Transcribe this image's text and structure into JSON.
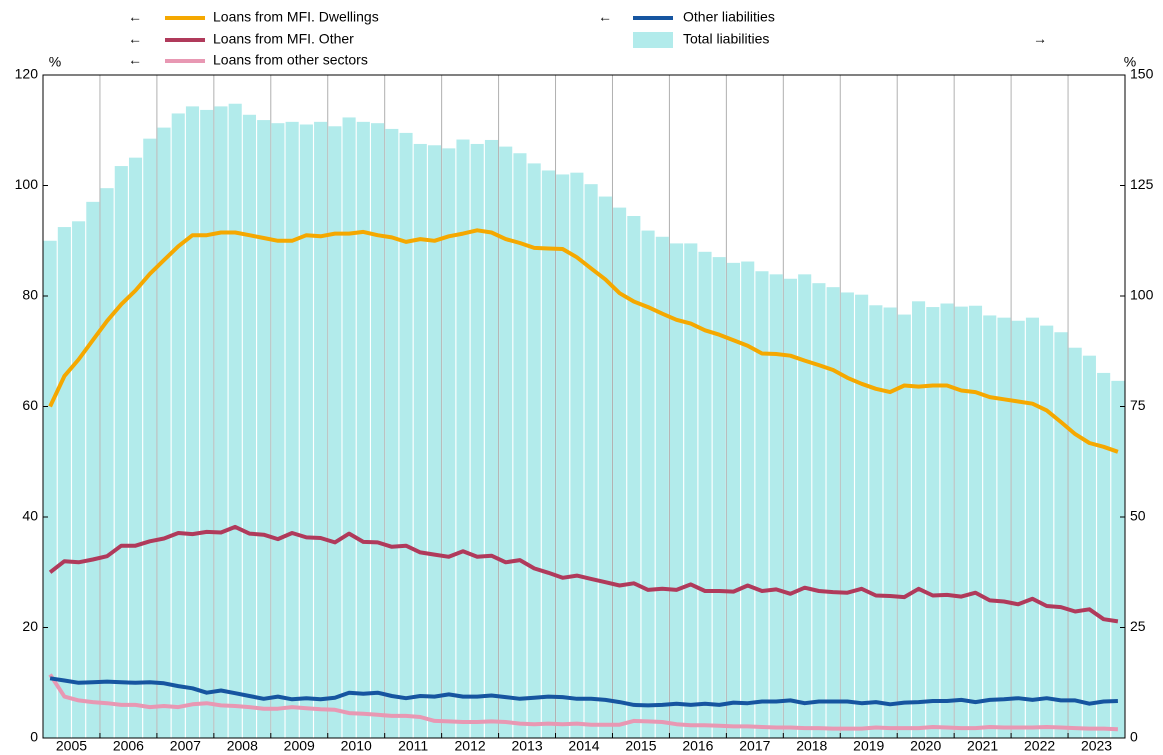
{
  "chart_data": {
    "type": "bar",
    "ylabel": "%",
    "y2label": "%",
    "ylim": [
      0,
      120
    ],
    "yticks": [
      0,
      20,
      40,
      60,
      80,
      100,
      120
    ],
    "y2lim": [
      0,
      150
    ],
    "y2ticks": [
      0,
      25,
      50,
      75,
      100,
      125,
      150
    ],
    "categories": [
      "2005",
      null,
      null,
      null,
      "2006",
      null,
      null,
      null,
      "2007",
      null,
      null,
      null,
      "2008",
      null,
      null,
      null,
      "2009",
      null,
      null,
      null,
      "2010",
      null,
      null,
      null,
      "2011",
      null,
      null,
      null,
      "2012",
      null,
      null,
      null,
      "2013",
      null,
      null,
      null,
      "2014",
      null,
      null,
      null,
      "2015",
      null,
      null,
      null,
      "2016",
      null,
      null,
      null,
      "2017",
      null,
      null,
      null,
      "2018",
      null,
      null,
      null,
      "2019",
      null,
      null,
      null,
      "2020",
      null,
      null,
      null,
      "2021",
      null,
      null,
      null,
      "2022",
      null,
      null,
      null,
      "2023",
      null,
      null,
      null
    ],
    "series": [
      {
        "name": "Loans from MFI. Dwellings",
        "type": "line",
        "arrow": "←",
        "color": "#f5a800",
        "values": [
          60,
          65.5,
          68.5,
          72,
          75.5,
          78.5,
          81,
          84,
          86.5,
          89,
          91,
          91,
          91.5,
          91.5,
          91,
          90.5,
          90,
          90,
          91,
          90.8,
          91.3,
          91.3,
          91.6,
          91,
          90.6,
          89.8,
          90.3,
          90,
          90.8,
          91.3,
          91.9,
          91.5,
          90.3,
          89.6,
          88.7,
          88.6,
          88.5,
          87,
          85,
          83,
          80.5,
          79,
          78,
          76.8,
          75.7,
          75,
          73.8,
          73,
          72,
          71,
          69.6,
          69.5,
          69.2,
          68.3,
          67.5,
          66.6,
          65.2,
          64.1,
          63.2,
          62.6,
          63.8,
          63.6,
          63.8,
          63.8,
          62.9,
          62.6,
          61.7,
          61.3,
          60.9,
          60.5,
          59.3,
          57.2,
          55,
          53.4,
          52.7,
          51.8
        ]
      },
      {
        "name": "Loans from MFI. Other",
        "type": "line",
        "arrow": "←",
        "color": "#b03a5b",
        "values": [
          30,
          32,
          31.8,
          32.3,
          32.9,
          34.8,
          34.8,
          35.6,
          36.1,
          37.1,
          36.9,
          37.3,
          37.2,
          38.2,
          37,
          36.8,
          36,
          37.1,
          36.3,
          36.2,
          35.4,
          37,
          35.5,
          35.4,
          34.6,
          34.8,
          33.6,
          33.2,
          32.8,
          33.8,
          32.8,
          33,
          31.8,
          32.2,
          30.7,
          29.9,
          29,
          29.4,
          28.8,
          28.2,
          27.6,
          28,
          26.8,
          27,
          26.8,
          27.8,
          26.6,
          26.6,
          26.5,
          27.6,
          26.6,
          26.9,
          26.1,
          27.2,
          26.6,
          26.4,
          26.3,
          27,
          25.8,
          25.7,
          25.5,
          27,
          25.8,
          25.9,
          25.6,
          26.3,
          24.9,
          24.7,
          24.2,
          25.2,
          23.9,
          23.7,
          22.9,
          23.3,
          21.5,
          21.1
        ]
      },
      {
        "name": "Loans from other sectors",
        "type": "line",
        "arrow": "←",
        "color": "#e898b3",
        "values": [
          11.5,
          7.5,
          6.8,
          6.5,
          6.3,
          6,
          6,
          5.6,
          5.8,
          5.6,
          6.1,
          6.3,
          5.9,
          5.8,
          5.6,
          5.3,
          5.3,
          5.6,
          5.4,
          5.2,
          5.1,
          4.5,
          4.4,
          4.2,
          4,
          4,
          3.8,
          3.1,
          3,
          2.9,
          2.9,
          3,
          2.9,
          2.6,
          2.5,
          2.6,
          2.5,
          2.6,
          2.4,
          2.4,
          2.4,
          3.1,
          3,
          2.9,
          2.5,
          2.3,
          2.3,
          2.2,
          2.1,
          2.1,
          2,
          1.9,
          1.9,
          1.8,
          1.8,
          1.7,
          1.7,
          1.7,
          1.9,
          1.8,
          1.8,
          1.8,
          2,
          1.9,
          1.8,
          1.8,
          2,
          1.9,
          1.9,
          1.9,
          2,
          1.9,
          1.8,
          1.7,
          1.7,
          1.6
        ]
      },
      {
        "name": "Other liabilities",
        "type": "line",
        "arrow": "←",
        "color": "#1655a0",
        "values": [
          10.8,
          10.4,
          10,
          10.1,
          10.2,
          10.1,
          10,
          10.1,
          9.9,
          9.4,
          9,
          8.2,
          8.6,
          8.1,
          7.6,
          7.1,
          7.5,
          7,
          7.2,
          7,
          7.3,
          8.2,
          8,
          8.2,
          7.6,
          7.2,
          7.6,
          7.5,
          7.9,
          7.5,
          7.5,
          7.7,
          7.4,
          7.1,
          7.3,
          7.5,
          7.4,
          7.1,
          7.1,
          6.9,
          6.5,
          6,
          5.9,
          6,
          6.2,
          6,
          6.2,
          6,
          6.4,
          6.3,
          6.6,
          6.6,
          6.8,
          6.3,
          6.6,
          6.6,
          6.6,
          6.3,
          6.5,
          6.1,
          6.4,
          6.5,
          6.7,
          6.7,
          6.9,
          6.5,
          6.9,
          7,
          7.2,
          6.9,
          7.2,
          6.8,
          6.8,
          6.2,
          6.6,
          6.7
        ]
      },
      {
        "name": "Total liabilities",
        "type": "bar",
        "axis": "y2",
        "arrow": "→",
        "color": "#b2ebeb",
        "values": [
          112.5,
          115.6,
          116.9,
          121.3,
          124.4,
          129.4,
          131.3,
          135.6,
          138.1,
          141.3,
          142.9,
          142.1,
          142.9,
          143.5,
          141,
          139.8,
          139.1,
          139.4,
          138.8,
          139.4,
          138.4,
          140.4,
          139.4,
          139.1,
          137.8,
          136.9,
          134.4,
          134.1,
          133.4,
          135.4,
          134.4,
          135.3,
          133.8,
          132.3,
          130,
          128.4,
          127.5,
          127.9,
          125.3,
          122.5,
          120,
          118.1,
          114.8,
          113.4,
          111.9,
          111.9,
          110,
          108.8,
          107.5,
          107.8,
          105.6,
          104.9,
          103.9,
          104.9,
          102.9,
          102,
          100.8,
          100.3,
          97.9,
          97.4,
          95.8,
          98.8,
          97.5,
          98.3,
          97.6,
          97.8,
          95.6,
          95.1,
          94.4,
          95.1,
          93.3,
          91.8,
          88.3,
          86.5,
          82.6,
          80.8
        ]
      }
    ]
  }
}
